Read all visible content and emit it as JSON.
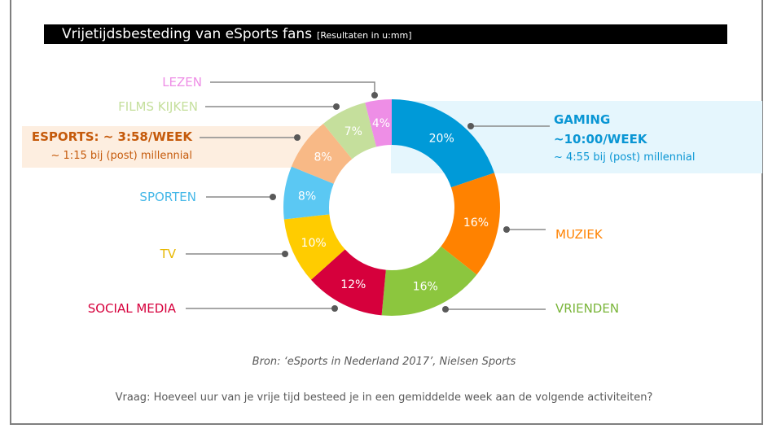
{
  "title": "Vrijetijdsbesteding van eSports fans",
  "subtitle": "[Resultaten in u:mm]",
  "chart_data": {
    "type": "pie",
    "donut": true,
    "categories": [
      "GAMING",
      "MUZIEK",
      "VRIENDEN",
      "SOCIAL MEDIA",
      "TV",
      "SPORTEN",
      "ESPORTS",
      "FILMS KIJKEN",
      "LEZEN"
    ],
    "values": [
      20,
      16,
      16,
      12,
      10,
      8,
      8,
      7,
      4
    ],
    "data_labels": [
      "20%",
      "16%",
      "16%",
      "12%",
      "10%",
      "8%",
      "8%",
      "7%",
      "4%"
    ],
    "colors": [
      "#009ad8",
      "#ff8200",
      "#8cc63e",
      "#d6003c",
      "#ffcc00",
      "#5bc8f3",
      "#f8b986",
      "#c5df9c",
      "#ee8ee6"
    ]
  },
  "callouts": {
    "gaming": {
      "title": "GAMING",
      "time": "~10:00/WEEK",
      "note": "~ 4:55 bij (post) millennial"
    },
    "esports": {
      "title": "ESPORTS:  ~ 3:58/WEEK",
      "note": "~ 1:15 bij (post) millennial"
    }
  },
  "source": "Bron: ‘eSports in Nederland 2017’, Nielsen Sports",
  "question": "Vraag: Hoeveel uur van je vrije tijd besteed je in een gemiddelde week aan de volgende activiteiten?"
}
